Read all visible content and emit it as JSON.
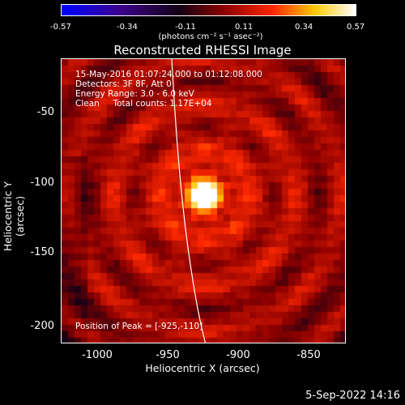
{
  "colorbar": {
    "ticks": [
      "-0.57",
      "-0.34",
      "-0.11",
      "0.11",
      "0.34",
      "0.57"
    ],
    "units": "(photons cm⁻² s⁻¹ asec⁻²)"
  },
  "title": "Reconstructed RHESSI Image",
  "annotations": {
    "line1": "15-May-2016 01:07:24.000 to 01:12:08.000",
    "line2": "Detectors: 3F 8F, Att 0",
    "line3": "Energy Range: 3.0 - 6.0 keV",
    "line4": "Clean     Total counts: 1.17E+04",
    "peak": "Position of Peak = [-925,-110]"
  },
  "axes": {
    "xlabel": "Heliocentric X (arcsec)",
    "ylabel": "Heliocentric Y (arcsec)",
    "xticks": [
      "-1000",
      "-950",
      "-900",
      "-850"
    ],
    "yticks": [
      "-50",
      "-100",
      "-150",
      "-200"
    ]
  },
  "footer": {
    "date": "5-Sep-2022 14:16"
  }
}
